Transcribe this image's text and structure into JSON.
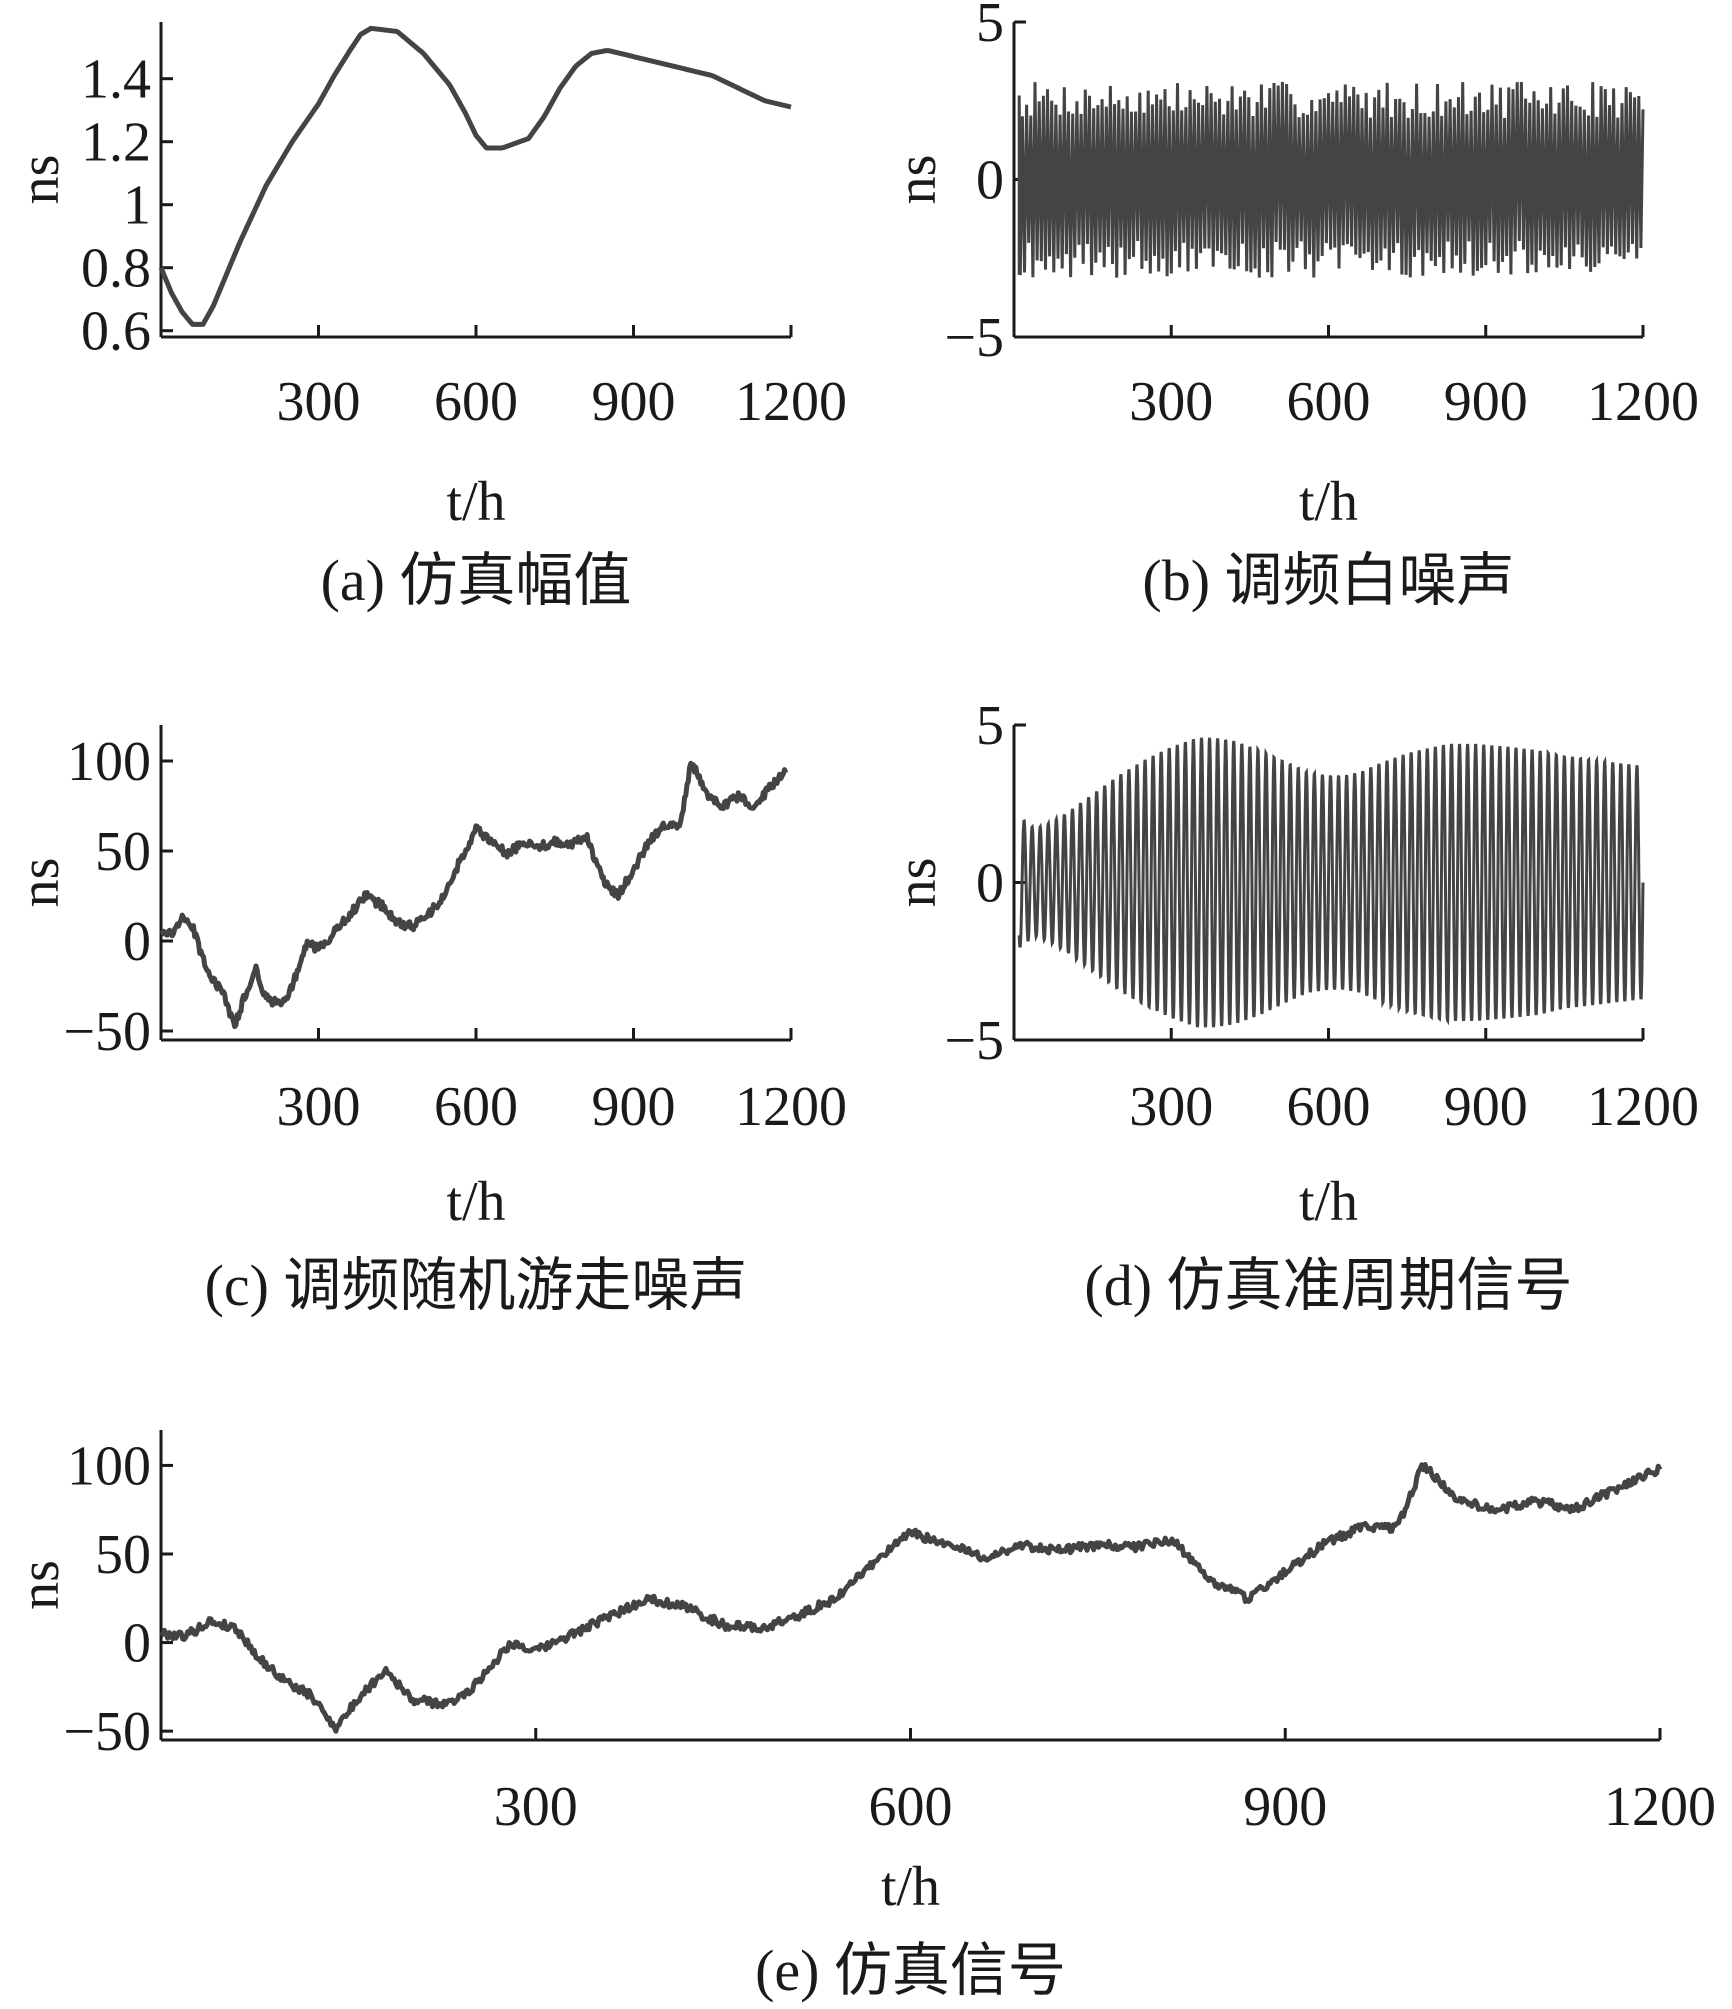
{
  "chart_data": [
    {
      "id": "a",
      "type": "line",
      "caption": "(a) 仿真幅值",
      "xlabel": "t/h",
      "ylabel": "ns",
      "xlim": [
        0,
        1200
      ],
      "ylim": [
        0.58,
        1.58
      ],
      "xticks": [
        300,
        600,
        900,
        1200
      ],
      "yticks": [
        0.6,
        0.8,
        1,
        1.2,
        1.4
      ],
      "ytick_labels": [
        "0.6",
        "0.8",
        "1",
        "1.2",
        "1.4"
      ],
      "series": [
        {
          "x": [
            0,
            20,
            40,
            60,
            80,
            100,
            150,
            200,
            250,
            300,
            330,
            360,
            380,
            400,
            450,
            500,
            550,
            580,
            600,
            620,
            650,
            700,
            730,
            760,
            790,
            820,
            850,
            900,
            950,
            1000,
            1050,
            1100,
            1150,
            1200
          ],
          "y": [
            0.8,
            0.72,
            0.66,
            0.62,
            0.62,
            0.68,
            0.88,
            1.06,
            1.2,
            1.32,
            1.41,
            1.49,
            1.54,
            1.56,
            1.55,
            1.48,
            1.38,
            1.29,
            1.22,
            1.18,
            1.18,
            1.21,
            1.28,
            1.37,
            1.44,
            1.48,
            1.49,
            1.47,
            1.45,
            1.43,
            1.41,
            1.37,
            1.33,
            1.31
          ]
        }
      ]
    },
    {
      "id": "b",
      "type": "line",
      "caption": "(b) 调频白噪声",
      "xlabel": "t/h",
      "ylabel": "ns",
      "xlim": [
        0,
        1200
      ],
      "ylim": [
        -5,
        5
      ],
      "xticks": [
        300,
        600,
        900,
        1200
      ],
      "yticks": [
        -5,
        0,
        5
      ],
      "ytick_labels": [
        "−5",
        "0",
        "5"
      ],
      "noise": {
        "seed": 7,
        "amplitude": 2.6,
        "count": 300
      }
    },
    {
      "id": "c",
      "type": "line",
      "caption": "(c) 调频随机游走噪声",
      "xlabel": "t/h",
      "ylabel": "ns",
      "xlim": [
        0,
        1200
      ],
      "ylim": [
        -55,
        120
      ],
      "xticks": [
        300,
        600,
        900,
        1200
      ],
      "yticks": [
        -50,
        0,
        50,
        100
      ],
      "ytick_labels": [
        "−50",
        "0",
        "50",
        "100"
      ],
      "series": [
        {
          "x": [
            0,
            20,
            40,
            60,
            80,
            100,
            120,
            140,
            160,
            180,
            200,
            230,
            250,
            280,
            300,
            330,
            360,
            390,
            420,
            450,
            480,
            510,
            540,
            570,
            600,
            630,
            660,
            690,
            720,
            750,
            780,
            810,
            840,
            870,
            900,
            930,
            960,
            990,
            1010,
            1040,
            1070,
            1100,
            1130,
            1160,
            1190
          ],
          "y": [
            5,
            4,
            12,
            8,
            -10,
            -22,
            -30,
            -48,
            -30,
            -15,
            -32,
            -35,
            -25,
            0,
            -5,
            5,
            15,
            25,
            20,
            10,
            8,
            15,
            25,
            45,
            62,
            55,
            48,
            55,
            52,
            55,
            54,
            58,
            35,
            25,
            40,
            55,
            65,
            65,
            100,
            80,
            75,
            80,
            75,
            85,
            95
          ]
        }
      ]
    },
    {
      "id": "d",
      "type": "line",
      "caption": "(d) 仿真准周期信号",
      "xlabel": "t/h",
      "ylabel": "ns",
      "xlim": [
        0,
        1200
      ],
      "ylim": [
        -5,
        5
      ],
      "xticks": [
        300,
        600,
        900,
        1200
      ],
      "yticks": [
        -5,
        0,
        5
      ],
      "ytick_labels": [
        "−5",
        "0",
        "5"
      ],
      "envelope": {
        "x": [
          0,
          40,
          70,
          100,
          150,
          200,
          250,
          300,
          350,
          380,
          420,
          470,
          520,
          560,
          600,
          630,
          660,
          700,
          750,
          800,
          830,
          880,
          950,
          1000,
          1050,
          1100,
          1150,
          1200
        ],
        "y": [
          2.2,
          1.7,
          1.9,
          2.2,
          2.8,
          3.4,
          3.9,
          4.3,
          4.6,
          4.6,
          4.5,
          4.2,
          3.8,
          3.5,
          3.4,
          3.4,
          3.5,
          3.8,
          4.1,
          4.3,
          4.4,
          4.4,
          4.3,
          4.2,
          4.0,
          3.9,
          3.8,
          3.7
        ]
      },
      "periods": 78
    },
    {
      "id": "e",
      "type": "line",
      "caption": "(e) 仿真信号",
      "xlabel": "t/h",
      "ylabel": "ns",
      "xlim": [
        0,
        1200
      ],
      "ylim": [
        -55,
        120
      ],
      "xticks": [
        300,
        600,
        900,
        1200
      ],
      "yticks": [
        -50,
        0,
        50,
        100
      ],
      "ytick_labels": [
        "−50",
        "0",
        "50",
        "100"
      ],
      "series": [
        {
          "x": [
            0,
            20,
            40,
            60,
            80,
            100,
            120,
            140,
            160,
            180,
            200,
            230,
            250,
            280,
            300,
            330,
            360,
            390,
            420,
            450,
            480,
            510,
            540,
            570,
            600,
            630,
            660,
            690,
            720,
            750,
            780,
            810,
            840,
            870,
            900,
            930,
            960,
            990,
            1010,
            1040,
            1070,
            1100,
            1130,
            1160,
            1190,
            1200
          ],
          "y": [
            5,
            4,
            12,
            8,
            -10,
            -22,
            -30,
            -48,
            -30,
            -15,
            -32,
            -35,
            -25,
            0,
            -5,
            5,
            15,
            25,
            20,
            10,
            8,
            15,
            25,
            45,
            62,
            55,
            48,
            55,
            52,
            55,
            54,
            58,
            35,
            25,
            40,
            55,
            65,
            65,
            100,
            80,
            75,
            80,
            75,
            85,
            95,
            98
          ]
        }
      ]
    }
  ]
}
